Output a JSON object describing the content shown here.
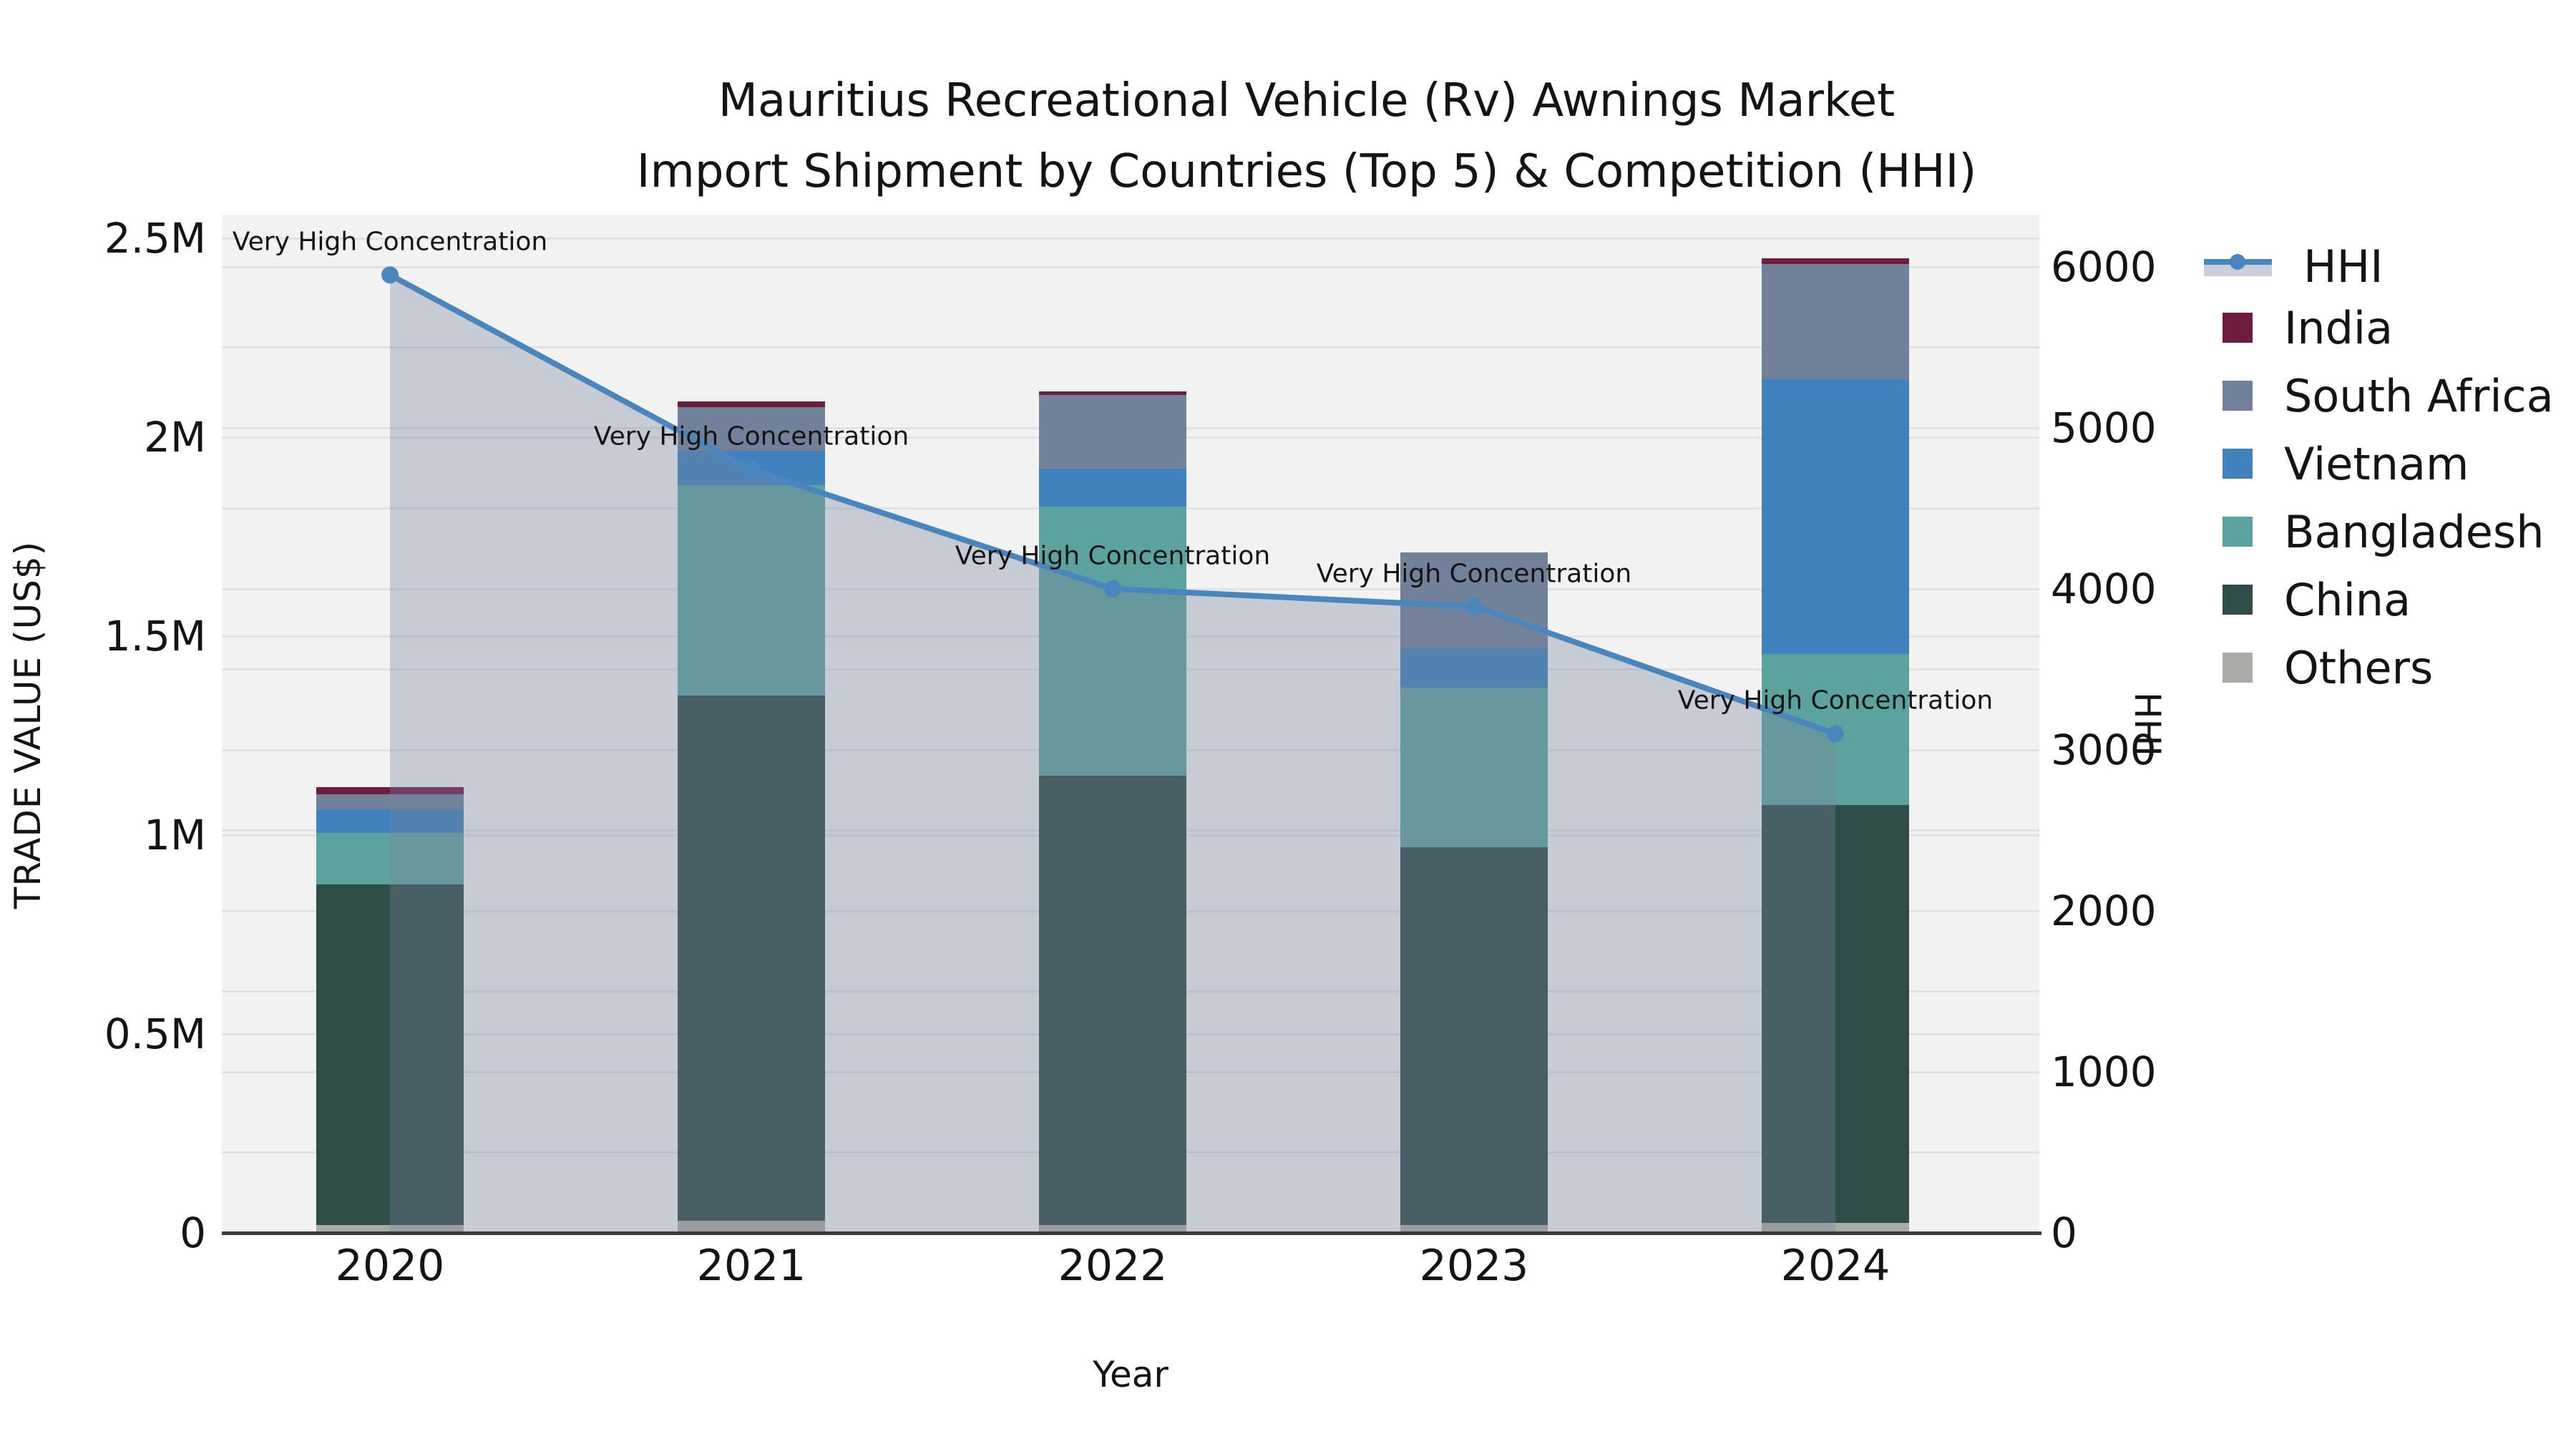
{
  "title": {
    "line1": "Mauritius Recreational Vehicle (Rv) Awnings Market",
    "line2": "Import Shipment by Countries (Top 5) & Competition (HHI)"
  },
  "axes": {
    "x_label": "Year",
    "y_left_label": "TRADE VALUE (US$)",
    "y_right_label": "HHI"
  },
  "legend": {
    "items": [
      {
        "label": "HHI",
        "type": "line",
        "color": "#4a86be"
      },
      {
        "label": "India",
        "type": "box",
        "color": "#6f1d3f"
      },
      {
        "label": "South Africa",
        "type": "box",
        "color": "#71819a"
      },
      {
        "label": "Vietnam",
        "type": "box",
        "color": "#3f82be"
      },
      {
        "label": "Bangladesh",
        "type": "box",
        "color": "#5ca39f"
      },
      {
        "label": "China",
        "type": "box",
        "color": "#2f4d49"
      },
      {
        "label": "Others",
        "type": "box",
        "color": "#abaaa7"
      }
    ]
  },
  "colors": {
    "plot_background": "#f2f2f3",
    "grid": "#e2e2e6",
    "axis_line": "#3a3a3a",
    "hhi_line": "#4a86be",
    "hhi_area_fill": "#77859b",
    "hhi_area_opacity": 0.35,
    "text": "#141414"
  },
  "chart_data": {
    "type": "bar",
    "subtype": "stacked bars with overlaid line (dual axis)",
    "categories": [
      "2020",
      "2021",
      "2022",
      "2023",
      "2024"
    ],
    "series": [
      {
        "name": "Others",
        "color": "#abaaa7",
        "values": [
          20000,
          30000,
          20000,
          20000,
          25000
        ]
      },
      {
        "name": "China",
        "color": "#2f4d49",
        "values": [
          855000,
          1320000,
          1130000,
          950000,
          1050000
        ]
      },
      {
        "name": "Bangladesh",
        "color": "#5ca39f",
        "values": [
          130000,
          530000,
          675000,
          400000,
          380000
        ]
      },
      {
        "name": "Vietnam",
        "color": "#3f82be",
        "values": [
          60000,
          85000,
          95000,
          100000,
          690000
        ]
      },
      {
        "name": "South Africa",
        "color": "#71819a",
        "values": [
          38000,
          110000,
          185000,
          240000,
          290000
        ]
      },
      {
        "name": "India",
        "color": "#6f1d3f",
        "values": [
          18000,
          15000,
          10000,
          0,
          15000
        ]
      }
    ],
    "bar_totals": [
      1121000,
      2090000,
      2115000,
      1710000,
      2450000
    ],
    "line": {
      "name": "HHI",
      "values": [
        5950,
        4740,
        4000,
        3890,
        3100
      ],
      "annotation_text": "Very High Concentration",
      "annotations": [
        "Very High Concentration",
        "Very High Concentration",
        "Very High Concentration",
        "Very High Concentration",
        "Very High Concentration"
      ]
    },
    "title": "Mauritius Recreational Vehicle (Rv) Awnings Market Import Shipment by Countries (Top 5) & Competition (HHI)",
    "xlabel": "Year",
    "ylabel_left": "TRADE VALUE (US$)",
    "ylabel_right": "HHI",
    "left_axis": {
      "ylim": [
        0,
        2559000
      ],
      "ticks": [
        {
          "value": 0,
          "label": "0"
        },
        {
          "value": 500000,
          "label": "0.5M"
        },
        {
          "value": 1000000,
          "label": "1M"
        },
        {
          "value": 1500000,
          "label": "1.5M"
        },
        {
          "value": 2000000,
          "label": "2M"
        },
        {
          "value": 2500000,
          "label": "2.5M"
        }
      ],
      "grid_step": 500000
    },
    "right_axis": {
      "ylim": [
        0,
        6324
      ],
      "ticks": [
        {
          "value": 0,
          "label": "0"
        },
        {
          "value": 1000,
          "label": "1000"
        },
        {
          "value": 2000,
          "label": "2000"
        },
        {
          "value": 3000,
          "label": "3000"
        },
        {
          "value": 4000,
          "label": "4000"
        },
        {
          "value": 5000,
          "label": "5000"
        },
        {
          "value": 6000,
          "label": "6000"
        }
      ],
      "grid_step": 500
    },
    "legend_position": "right",
    "grid": true
  }
}
